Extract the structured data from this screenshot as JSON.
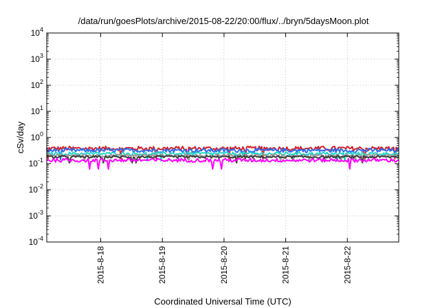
{
  "chart_data": {
    "type": "line",
    "title": "/data/run/goesPlots/archive/2015-08-22/20:00/flux/../bryn/5daysMoon.plot",
    "xlabel": "Coordinated Universal Time (UTC)",
    "ylabel": "cSv/day",
    "yscale": "log",
    "ylim": [
      0.0001,
      10000
    ],
    "y_ticks": [
      {
        "base": "10",
        "exp": "-4",
        "value": 0.0001
      },
      {
        "base": "10",
        "exp": "-3",
        "value": 0.001
      },
      {
        "base": "10",
        "exp": "-2",
        "value": 0.01
      },
      {
        "base": "10",
        "exp": "-1",
        "value": 0.1
      },
      {
        "base": "10",
        "exp": "0",
        "value": 1
      },
      {
        "base": "10",
        "exp": "1",
        "value": 10
      },
      {
        "base": "10",
        "exp": "2",
        "value": 100
      },
      {
        "base": "10",
        "exp": "3",
        "value": 1000
      },
      {
        "base": "10",
        "exp": "4",
        "value": 10000
      }
    ],
    "xlim": [
      "2015-08-17 03:00",
      "2015-08-22 20:00"
    ],
    "x_ticks": [
      {
        "label": "2015-8-18",
        "value": "2015-08-18 00:00"
      },
      {
        "label": "2015-8-19",
        "value": "2015-08-19 00:00"
      },
      {
        "label": "2015-8-20",
        "value": "2015-08-20 00:00"
      },
      {
        "label": "2015-8-21",
        "value": "2015-08-21 00:00"
      },
      {
        "label": "2015-8-22",
        "value": "2015-08-22 00:00"
      }
    ],
    "grid": true,
    "legend": "none",
    "series": [
      {
        "color": "#d4202a",
        "level": 0.38,
        "var": 0.14
      },
      {
        "color": "#2b6cf0",
        "level": 0.32,
        "var": 0.13
      },
      {
        "color": "#1fd6c8",
        "level": 0.24,
        "var": 0.1
      },
      {
        "color": "#9a9a9a",
        "level": 0.205,
        "var": 0.08
      },
      {
        "color": "#3a3a3a",
        "level": 0.18,
        "var": 0.08
      },
      {
        "color": "#ff00ff",
        "level": 0.135,
        "var": 0.12
      }
    ]
  }
}
